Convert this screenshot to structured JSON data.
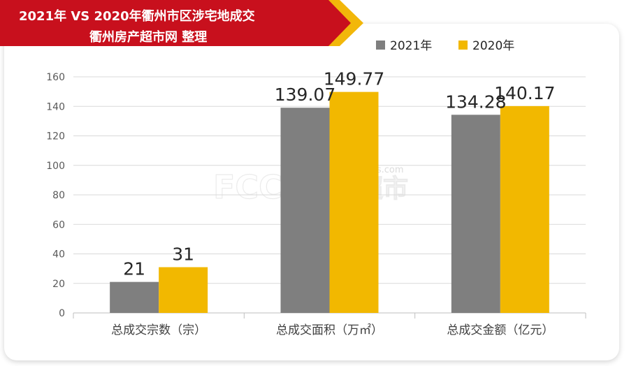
{
  "header": {
    "title_line1": "2021年 VS 2020年衢州市区涉宅地成交",
    "title_line2": "衢州房产超市网 整理",
    "accent_red": "#c8101d",
    "accent_gold": "#f2b70a"
  },
  "watermark": {
    "logo_text": "FCCS",
    "brand_text": "房产超市",
    "domain_text": "fccs.com"
  },
  "chart_data": {
    "type": "bar",
    "categories": [
      "总成交宗数（宗）",
      "总成交面积（万㎡）",
      "总成交金额（亿元）"
    ],
    "series": [
      {
        "name": "2021年",
        "values": [
          21,
          139.07,
          134.28
        ],
        "labels": [
          "21",
          "139.07",
          "134.28"
        ],
        "color": "#7f7f7f"
      },
      {
        "name": "2020年",
        "values": [
          31,
          149.77,
          140.17
        ],
        "labels": [
          "31",
          "149.77",
          "140.17"
        ],
        "color": "#f2b800"
      }
    ],
    "yticks": [
      0,
      20,
      40,
      60,
      80,
      100,
      120,
      140,
      160
    ],
    "ylim": [
      0,
      160
    ],
    "grid": true,
    "legend_position": "top-right"
  }
}
